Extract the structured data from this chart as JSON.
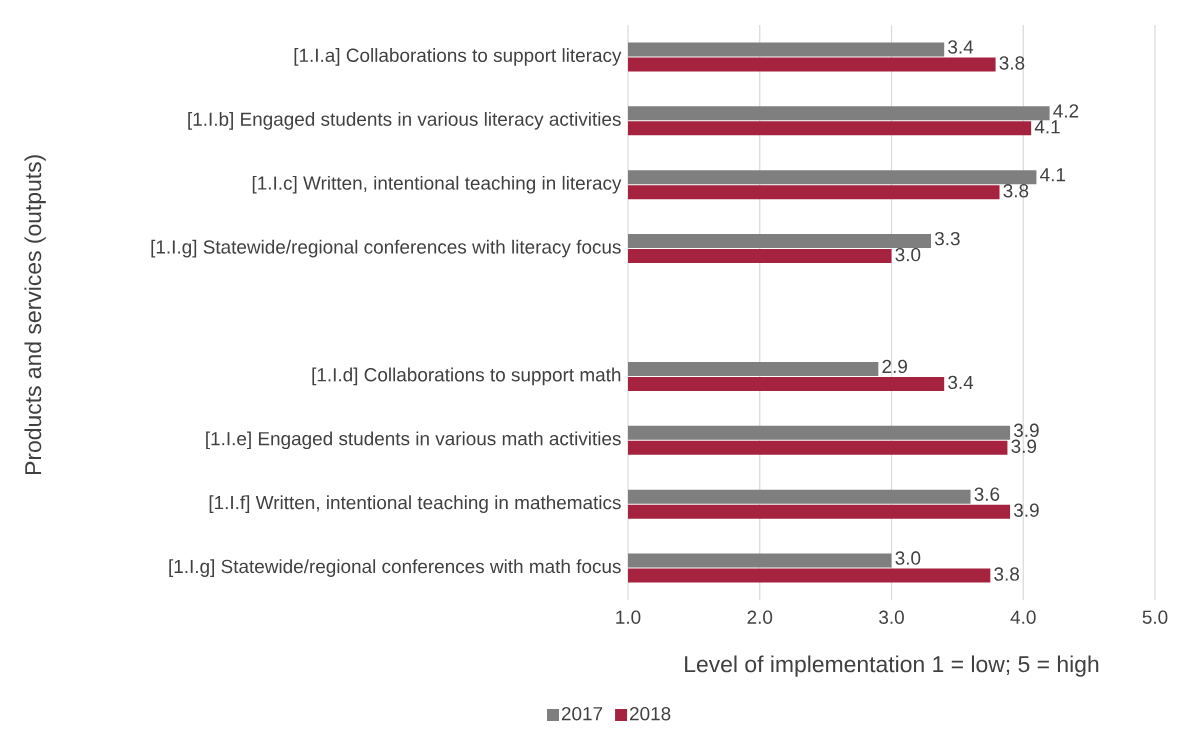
{
  "chart_data": {
    "type": "bar",
    "orientation": "horizontal",
    "categories": [
      "[1.I.a] Collaborations  to support literacy",
      "[1.I.b] Engaged students in various literacy activities",
      "[1.I.c] Written, intentional teaching in literacy",
      "[1.I.g] Statewide/regional conferences with literacy focus",
      null,
      "[1.I.d] Collaborations  to support math",
      "[1.I.e] Engaged students in various math activities",
      "[1.I.f] Written, intentional teaching in mathematics",
      "[1.I.g] Statewide/regional conferences with math focus"
    ],
    "series": [
      {
        "name": "2017",
        "color": "#7f7f7f",
        "values": [
          3.4,
          4.2,
          4.1,
          3.3,
          null,
          2.9,
          3.9,
          3.6,
          3.0
        ],
        "value_labels": [
          "3.4",
          "4.2",
          "4.1",
          "3.3",
          null,
          "2.9",
          "3.9",
          "3.6",
          "3.0"
        ]
      },
      {
        "name": "2018",
        "color": "#a5233f",
        "values": [
          3.79,
          4.06,
          3.82,
          3.0,
          null,
          3.4,
          3.88,
          3.9,
          3.75
        ],
        "value_labels": [
          "3.8",
          "4.1",
          "3.8",
          "3.0",
          null,
          "3.4",
          "3.9",
          "3.9",
          "3.8"
        ]
      }
    ],
    "xlim": [
      1,
      5
    ],
    "xticks": [
      {
        "value": 1,
        "label": "1.0"
      },
      {
        "value": 2,
        "label": "2.0"
      },
      {
        "value": 3,
        "label": "3.0"
      },
      {
        "value": 4,
        "label": "4.0"
      },
      {
        "value": 5,
        "label": "5.0"
      }
    ],
    "xlabel": "Level of implementation 1 = low; 5 = high",
    "ylabel": "Products and services (outputs)",
    "grid": "x",
    "legend": "bottom"
  }
}
